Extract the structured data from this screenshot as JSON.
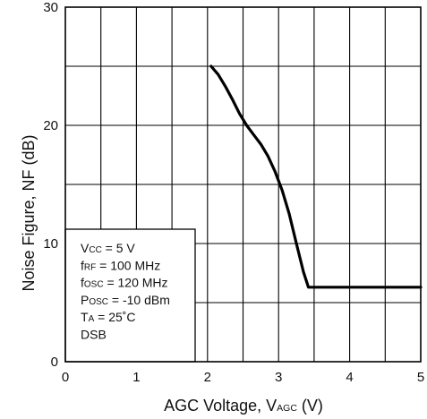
{
  "chart_data": {
    "type": "line",
    "xlabel": {
      "main": "AGC Voltage, V",
      "sub": "AGC",
      "suffix": " (V)"
    },
    "ylabel": "Noise Figure, NF (dB)",
    "xlim": [
      0,
      5
    ],
    "ylim": [
      0,
      30
    ],
    "x_ticks": [
      "0",
      "1",
      "2",
      "3",
      "4",
      "5"
    ],
    "y_ticks": [
      "0",
      "10",
      "20",
      "30"
    ],
    "grid": true,
    "grid_x_step": 0.5,
    "grid_y_step": 5,
    "series": [
      {
        "color": "#000000",
        "x": [
          2.05,
          2.15,
          2.25,
          2.35,
          2.45,
          2.55,
          2.65,
          2.75,
          2.85,
          2.95,
          3.05,
          3.15,
          3.25,
          3.35,
          3.42,
          3.5,
          4.0,
          4.5,
          5.0
        ],
        "y": [
          25.0,
          24.3,
          23.3,
          22.2,
          21.0,
          20.0,
          19.2,
          18.4,
          17.4,
          16.1,
          14.5,
          12.5,
          10.0,
          7.6,
          6.3,
          6.3,
          6.3,
          6.3,
          6.3
        ]
      }
    ]
  },
  "conditions": [
    {
      "pre": "V",
      "sub": "CC",
      "post": " = 5 V"
    },
    {
      "pre": "f",
      "sub": "RF",
      "post": " = 100 MHz"
    },
    {
      "pre": "f",
      "sub": "OSC",
      "post": " = 120 MHz"
    },
    {
      "pre": "P",
      "sub": "OSC",
      "post": " = -10 dBm"
    },
    {
      "pre": "T",
      "sub": "A",
      "post": " = 25˚C"
    },
    {
      "pre": "DSB",
      "sub": "",
      "post": ""
    }
  ]
}
